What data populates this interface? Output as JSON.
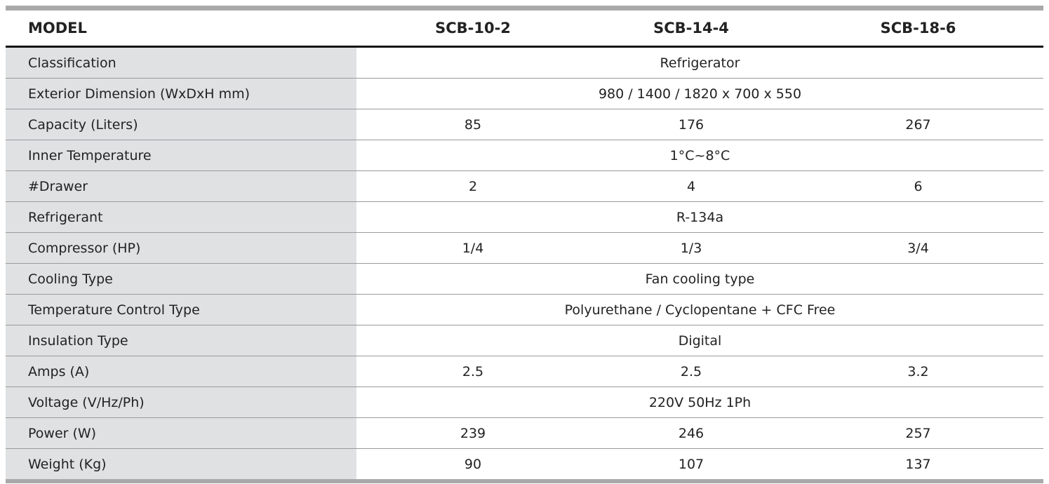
{
  "header": {
    "label": "MODEL",
    "models": [
      "SCB-10-2",
      "SCB-14-4",
      "SCB-18-6"
    ]
  },
  "table": {
    "rows": [
      {
        "label": "Classification",
        "values": [
          "Refrigerator"
        ]
      },
      {
        "label": "Exterior Dimension (WxDxH mm)",
        "values": [
          "980 / 1400 / 1820 x 700 x 550"
        ]
      },
      {
        "label": "Capacity (Liters)",
        "values": [
          "85",
          "176",
          "267"
        ]
      },
      {
        "label": "Inner Temperature",
        "values": [
          "1°C~8°C"
        ]
      },
      {
        "label": "#Drawer",
        "values": [
          "2",
          "4",
          "6"
        ]
      },
      {
        "label": "Refrigerant",
        "values": [
          "R-134a"
        ]
      },
      {
        "label": "Compressor (HP)",
        "values": [
          "1/4",
          "1/3",
          "3/4"
        ]
      },
      {
        "label": "Cooling Type",
        "values": [
          "Fan cooling type"
        ]
      },
      {
        "label": "Temperature Control Type",
        "values": [
          "Polyurethane / Cyclopentane + CFC Free"
        ]
      },
      {
        "label": "Insulation Type",
        "values": [
          "Digital"
        ]
      },
      {
        "label": "Amps (A)",
        "values": [
          "2.5",
          "2.5",
          "3.2"
        ]
      },
      {
        "label": "Voltage (V/Hz/Ph)",
        "values": [
          "220V 50Hz 1Ph"
        ]
      },
      {
        "label": "Power (W)",
        "values": [
          "239",
          "246",
          "257"
        ]
      },
      {
        "label": "Weight (Kg)",
        "values": [
          "90",
          "107",
          "137"
        ]
      }
    ]
  }
}
